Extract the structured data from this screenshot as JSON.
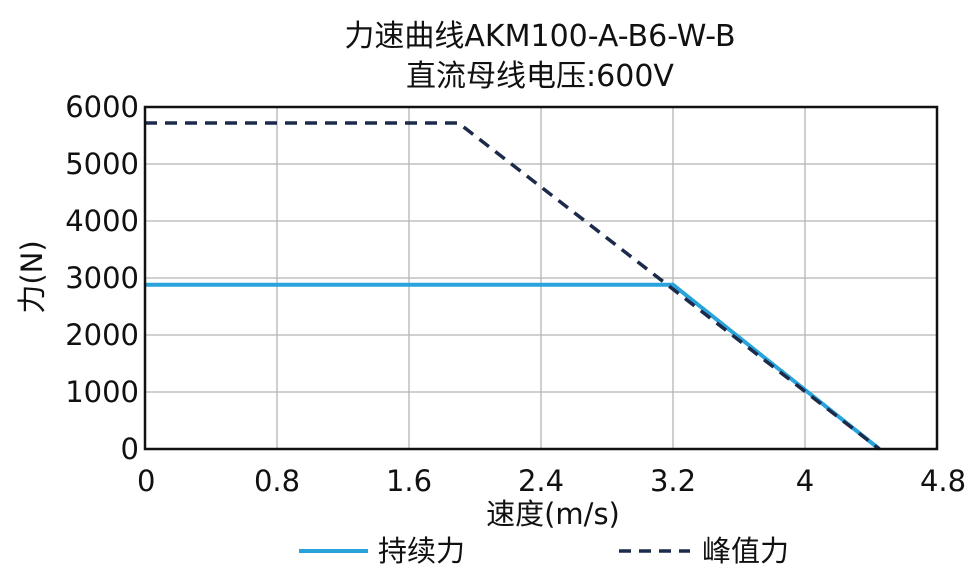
{
  "chart_data": {
    "type": "line",
    "title": "力速曲线AKM100-A-B6-W-B",
    "subtitle": "直流母线电压:600V",
    "xlabel": "速度(m/s)",
    "ylabel": "力(N)",
    "xlim": [
      0,
      4.8
    ],
    "ylim": [
      0,
      6000
    ],
    "x_ticks": [
      0,
      0.8,
      1.6,
      2.4,
      3.2,
      4,
      4.8
    ],
    "x_tick_labels": [
      "0",
      "0.8",
      "1.6",
      "2.4",
      "3.2",
      "4",
      "4.8"
    ],
    "y_ticks": [
      0,
      1000,
      2000,
      3000,
      4000,
      5000,
      6000
    ],
    "y_tick_labels": [
      "0",
      "1000",
      "2000",
      "3000",
      "4000",
      "5000",
      "6000"
    ],
    "grid": true,
    "legend_position": "bottom",
    "series": [
      {
        "name": "持续力",
        "style": "solid",
        "color": "#29a3dc",
        "points": [
          [
            0,
            2880
          ],
          [
            3.2,
            2880
          ],
          [
            4.45,
            0
          ]
        ]
      },
      {
        "name": "峰值力",
        "style": "dashed",
        "color": "#1c2b4a",
        "points": [
          [
            0,
            5720
          ],
          [
            1.9,
            5720
          ],
          [
            4.45,
            0
          ]
        ]
      }
    ]
  }
}
